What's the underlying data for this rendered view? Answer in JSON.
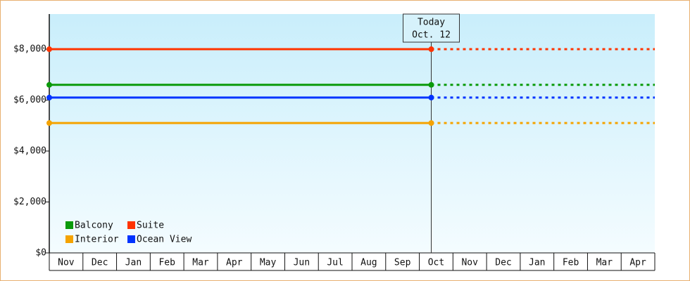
{
  "chart_data": {
    "type": "line",
    "categories": [
      "Nov",
      "Dec",
      "Jan",
      "Feb",
      "Mar",
      "Apr",
      "May",
      "Jun",
      "Jul",
      "Aug",
      "Sep",
      "Oct",
      "Nov",
      "Dec",
      "Jan",
      "Feb",
      "Mar",
      "Apr"
    ],
    "x": [
      "Nov",
      "Oct. 12"
    ],
    "series": [
      {
        "name": "Balcony",
        "color": "#0a9a0a",
        "values": [
          6600,
          6600
        ]
      },
      {
        "name": "Suite",
        "color": "#ff3300",
        "values": [
          8000,
          8000
        ]
      },
      {
        "name": "Interior",
        "color": "#f5a300",
        "values": [
          5100,
          5100
        ]
      },
      {
        "name": "Ocean View",
        "color": "#0033ff",
        "values": [
          6100,
          6100
        ]
      }
    ],
    "annotation": {
      "label": "Today",
      "date": "Oct. 12"
    },
    "ylim": [
      0,
      9380
    ],
    "yticks": [
      {
        "value": 0,
        "label": "$0"
      },
      {
        "value": 2000,
        "label": "$2,000"
      },
      {
        "value": 4000,
        "label": "$4,000"
      },
      {
        "value": 6000,
        "label": "$6,000"
      },
      {
        "value": 8000,
        "label": "$8,000"
      }
    ],
    "legend": "bottom-left"
  }
}
